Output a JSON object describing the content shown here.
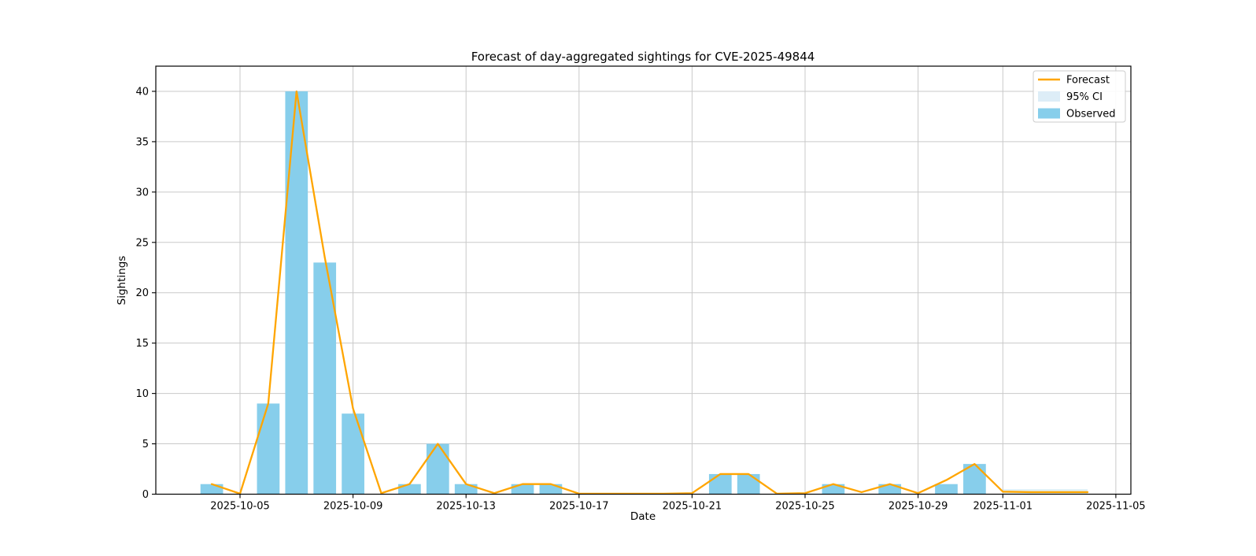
{
  "figure": {
    "title": "Forecast of day-aggregated sightings for CVE-2025-49844",
    "xlabel": "Date",
    "ylabel": "Sightings",
    "legend": [
      {
        "label": "Forecast",
        "swatch": "line",
        "color": "#ffa500"
      },
      {
        "label": "95% CI",
        "swatch": "patch",
        "color": "#ddedf7"
      },
      {
        "label": "Observed",
        "swatch": "patch",
        "color": "#87ceeb"
      }
    ]
  },
  "colors": {
    "observed_bar": "#87ceeb",
    "forecast_line": "#ffa500",
    "ci_band": "#add8e6",
    "grid": "#c9c9c9",
    "spine": "#000000",
    "background": "#ffffff"
  },
  "chart_data": {
    "type": "bar+line",
    "title": "Forecast of day-aggregated sightings for CVE-2025-49844",
    "xlabel": "Date",
    "ylabel": "Sightings",
    "grid": true,
    "legend_position": "upper right",
    "xlim": [
      "2025-10-02",
      "2025-11-05"
    ],
    "ylim": [
      0,
      42.5
    ],
    "x_ticks": [
      "2025-10-05",
      "2025-10-09",
      "2025-10-13",
      "2025-10-17",
      "2025-10-21",
      "2025-10-25",
      "2025-10-29",
      "2025-11-01",
      "2025-11-05"
    ],
    "y_ticks": [
      0,
      5,
      10,
      15,
      20,
      25,
      30,
      35,
      40
    ],
    "observed": {
      "label": "Observed",
      "dates": [
        "2025-10-04",
        "2025-10-06",
        "2025-10-07",
        "2025-10-08",
        "2025-10-09",
        "2025-10-11",
        "2025-10-12",
        "2025-10-13",
        "2025-10-15",
        "2025-10-16",
        "2025-10-22",
        "2025-10-23",
        "2025-10-26",
        "2025-10-28",
        "2025-10-30",
        "2025-10-31"
      ],
      "values": [
        1,
        9,
        40,
        23,
        8,
        1,
        5,
        1,
        1,
        1,
        2,
        2,
        1,
        1,
        1,
        3
      ]
    },
    "forecast": {
      "label": "Forecast",
      "dates": [
        "2025-10-04",
        "2025-10-05",
        "2025-10-06",
        "2025-10-07",
        "2025-10-08",
        "2025-10-09",
        "2025-10-10",
        "2025-10-11",
        "2025-10-12",
        "2025-10-13",
        "2025-10-14",
        "2025-10-15",
        "2025-10-16",
        "2025-10-17",
        "2025-10-18",
        "2025-10-19",
        "2025-10-20",
        "2025-10-21",
        "2025-10-22",
        "2025-10-23",
        "2025-10-24",
        "2025-10-25",
        "2025-10-26",
        "2025-10-27",
        "2025-10-28",
        "2025-10-29",
        "2025-10-30",
        "2025-10-31",
        "2025-11-01",
        "2025-11-02",
        "2025-11-03",
        "2025-11-04"
      ],
      "values": [
        1.0,
        0.05,
        9.0,
        40.0,
        23.5,
        8.5,
        0.1,
        1.0,
        5.0,
        1.0,
        0.1,
        1.0,
        1.0,
        0.05,
        0.05,
        0.05,
        0.05,
        0.1,
        2.0,
        2.0,
        0.05,
        0.1,
        1.0,
        0.2,
        1.0,
        0.1,
        1.4,
        3.0,
        0.25,
        0.2,
        0.2,
        0.2
      ]
    },
    "ci": {
      "label": "95% CI",
      "dates": [
        "2025-11-01",
        "2025-11-02",
        "2025-11-03",
        "2025-11-04"
      ],
      "upper": [
        0.5,
        0.5,
        0.5,
        0.5
      ],
      "lower": [
        0,
        0,
        0,
        0
      ]
    }
  }
}
